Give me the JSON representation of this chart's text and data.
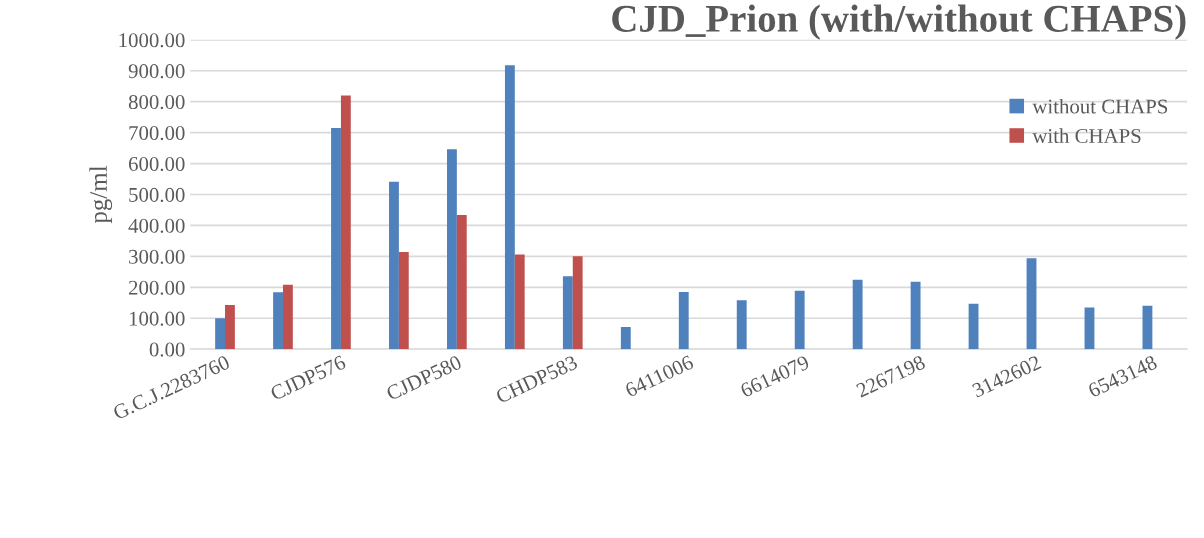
{
  "chart_data": {
    "type": "bar",
    "title": "CJD_Prion (with/without CHAPS)",
    "ylabel": "pg/ml",
    "categories": [
      "G.C.J.2283760",
      null,
      "CJDP576",
      null,
      "CJDP580",
      null,
      "CHDP583",
      null,
      "6411006",
      null,
      "6614079",
      null,
      "2267198",
      null,
      "3142602",
      null,
      "6543148"
    ],
    "series": [
      {
        "name": "without CHAPS",
        "color": "#4f81bd",
        "values": [
          100,
          184,
          715,
          541,
          646,
          918,
          236,
          72,
          185,
          158,
          189,
          224,
          218,
          147,
          294,
          135,
          140
        ]
      },
      {
        "name": "with CHAPS",
        "color": "#c0504d",
        "values": [
          143,
          208,
          820,
          314,
          434,
          306,
          300,
          null,
          null,
          null,
          null,
          null,
          null,
          null,
          null,
          null,
          null
        ]
      }
    ],
    "ylim": [
      0,
      1000
    ],
    "yticks": [
      {
        "value": 0,
        "label": "0.00"
      },
      {
        "value": 100,
        "label": "100.00"
      },
      {
        "value": 200,
        "label": "200.00"
      },
      {
        "value": 300,
        "label": "300.00"
      },
      {
        "value": 400,
        "label": "400.00"
      },
      {
        "value": 500,
        "label": "500.00"
      },
      {
        "value": 600,
        "label": "600.00"
      },
      {
        "value": 700,
        "label": "700.00"
      },
      {
        "value": 800,
        "label": "800.00"
      },
      {
        "value": 900,
        "label": "900.00"
      },
      {
        "value": 1000,
        "label": "1000.00"
      }
    ],
    "grid": "y",
    "legend": "top right"
  }
}
